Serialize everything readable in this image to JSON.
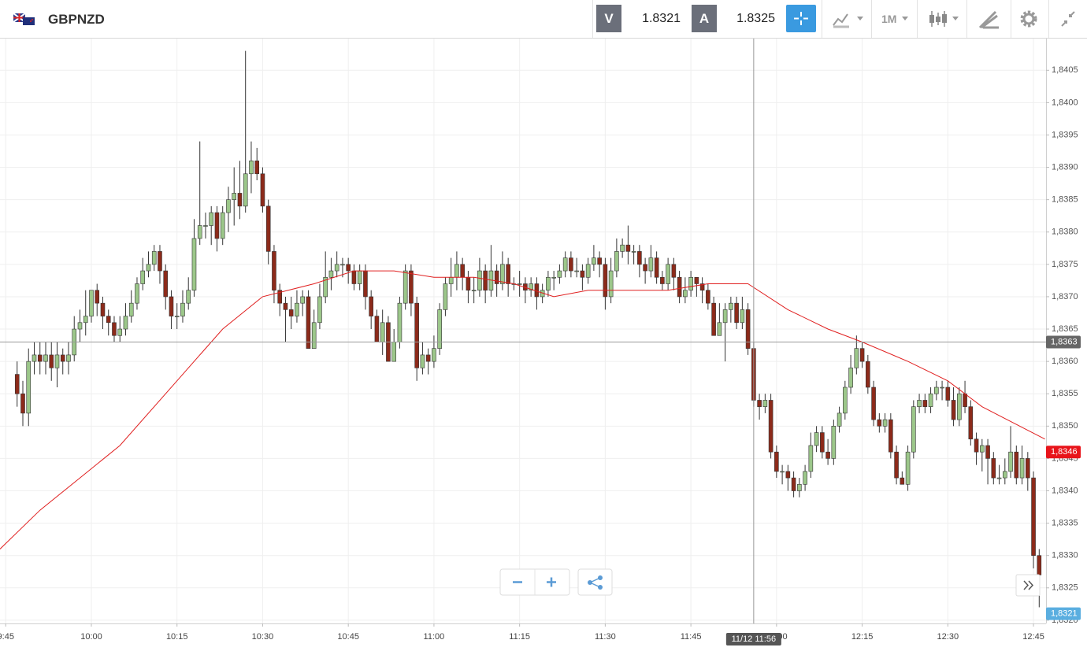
{
  "header": {
    "symbol": "GBPNZD",
    "bid_label": "V",
    "bid": "1.8321",
    "ask_label": "A",
    "ask": "1.8325",
    "timeframe": "1M"
  },
  "chart_data": {
    "type": "candlestick",
    "up_color": "#9cc78a",
    "down_color": "#8c2a1a",
    "edge_color": "#333333",
    "x": [
      587,
      588,
      589,
      590,
      591,
      592,
      593,
      594,
      595,
      596,
      597,
      598,
      599,
      600,
      601,
      602,
      603,
      604,
      605,
      606,
      607,
      608,
      609,
      610,
      611,
      612,
      613,
      614,
      615,
      616,
      617,
      618,
      619,
      620,
      621,
      622,
      623,
      624,
      625,
      626,
      627,
      628,
      629,
      630,
      631,
      632,
      633,
      634,
      635,
      636,
      637,
      638,
      639,
      640,
      641,
      642,
      643,
      644,
      645,
      646,
      647,
      648,
      649,
      650,
      651,
      652,
      653,
      654,
      655,
      656,
      657,
      658,
      659,
      660,
      661,
      662,
      663,
      664,
      665,
      666,
      667,
      668,
      669,
      670,
      671,
      672,
      673,
      674,
      675,
      676,
      677,
      678,
      679,
      680,
      681,
      682,
      683,
      684,
      685,
      686,
      687,
      688,
      689,
      690,
      691,
      692,
      693,
      694,
      695,
      696,
      697,
      698,
      699,
      700,
      701,
      702,
      703,
      704,
      705,
      706,
      707,
      708,
      709,
      710,
      711,
      712,
      713,
      714,
      715,
      716,
      717,
      718,
      719,
      720,
      721,
      722,
      723,
      724,
      725,
      726,
      727,
      728,
      729,
      730,
      731,
      732,
      733,
      734,
      735,
      736,
      737,
      738,
      739,
      740,
      741,
      742,
      743,
      744,
      745,
      746,
      747,
      748,
      749,
      750,
      751,
      752,
      753,
      754,
      755,
      756,
      757,
      758,
      759,
      760,
      761,
      762,
      763,
      764,
      765,
      766
    ],
    "open": [
      1.8358,
      1.8355,
      1.8352,
      1.836,
      1.8361,
      1.836,
      1.8361,
      1.8359,
      1.8361,
      1.836,
      1.8361,
      1.8365,
      1.8366,
      1.8367,
      1.8371,
      1.8369,
      1.8367,
      1.8366,
      1.8364,
      1.8365,
      1.8367,
      1.8369,
      1.8372,
      1.8374,
      1.8375,
      1.8377,
      1.8374,
      1.837,
      1.8367,
      1.8367,
      1.8369,
      1.8371,
      1.8379,
      1.8381,
      1.8381,
      1.8383,
      1.8379,
      1.8383,
      1.8385,
      1.8386,
      1.8384,
      1.8389,
      1.8391,
      1.8389,
      1.8384,
      1.8377,
      1.8371,
      1.8369,
      1.8368,
      1.8367,
      1.8369,
      1.837,
      1.8362,
      1.8366,
      1.837,
      1.8373,
      1.8374,
      1.8375,
      1.8375,
      1.8374,
      1.8372,
      1.8374,
      1.837,
      1.8367,
      1.8363,
      1.8366,
      1.836,
      1.8363,
      1.8369,
      1.8374,
      1.8369,
      1.8359,
      1.8361,
      1.836,
      1.8362,
      1.8368,
      1.8372,
      1.8373,
      1.8375,
      1.8373,
      1.8371,
      1.8371,
      1.8374,
      1.8371,
      1.8374,
      1.8372,
      1.8375,
      1.8372,
      1.8372,
      1.8372,
      1.8371,
      1.8372,
      1.837,
      1.8371,
      1.8373,
      1.8373,
      1.8374,
      1.8376,
      1.8374,
      1.8374,
      1.8373,
      1.8375,
      1.8376,
      1.8375,
      1.837,
      1.8374,
      1.8377,
      1.8378,
      1.8377,
      1.8377,
      1.8375,
      1.8374,
      1.8376,
      1.8373,
      1.8372,
      1.8375,
      1.8373,
      1.837,
      1.8371,
      1.8373,
      1.8372,
      1.8371,
      1.8369,
      1.8364,
      1.8366,
      1.8368,
      1.8369,
      1.8366,
      1.8368,
      1.8362,
      1.8354,
      1.8353,
      1.8354,
      1.8346,
      1.8343,
      1.8343,
      1.8342,
      1.834,
      1.8341,
      1.8343,
      1.8347,
      1.8349,
      1.8346,
      1.8345,
      1.835,
      1.8352,
      1.8356,
      1.8359,
      1.8362,
      1.836,
      1.8356,
      1.8351,
      1.835,
      1.8351,
      1.8346,
      1.8342,
      1.8341,
      1.8346,
      1.8353,
      1.8354,
      1.8353,
      1.8355,
      1.8356,
      1.8356,
      1.8354,
      1.8351,
      1.8355,
      1.8353,
      1.8348,
      1.8346,
      1.8347,
      1.8345,
      1.8342,
      1.8342,
      1.8343,
      1.8346,
      1.8342,
      1.8345,
      1.8342,
      1.833
    ],
    "high": [
      1.836,
      1.8357,
      1.8362,
      1.8363,
      1.8363,
      1.8363,
      1.8363,
      1.8363,
      1.8362,
      1.8363,
      1.8367,
      1.8368,
      1.8371,
      1.8371,
      1.8372,
      1.837,
      1.8368,
      1.8367,
      1.8367,
      1.8369,
      1.8371,
      1.8373,
      1.8376,
      1.8377,
      1.8378,
      1.8378,
      1.8375,
      1.8371,
      1.8369,
      1.8371,
      1.8373,
      1.8382,
      1.8394,
      1.8383,
      1.8384,
      1.8384,
      1.8384,
      1.8387,
      1.839,
      1.8391,
      1.8408,
      1.8394,
      1.8393,
      1.839,
      1.8385,
      1.8378,
      1.8372,
      1.837,
      1.837,
      1.8371,
      1.8371,
      1.8371,
      1.8368,
      1.8372,
      1.8377,
      1.8376,
      1.8377,
      1.8376,
      1.8376,
      1.8375,
      1.8375,
      1.8375,
      1.8371,
      1.8368,
      1.8368,
      1.8367,
      1.8365,
      1.837,
      1.8375,
      1.8375,
      1.837,
      1.8363,
      1.8362,
      1.8364,
      1.8369,
      1.8373,
      1.8376,
      1.8377,
      1.8376,
      1.8374,
      1.8373,
      1.8376,
      1.8375,
      1.8378,
      1.8375,
      1.8377,
      1.8376,
      1.8373,
      1.8374,
      1.8373,
      1.8373,
      1.8373,
      1.8372,
      1.8374,
      1.8374,
      1.8375,
      1.8377,
      1.8377,
      1.8376,
      1.8375,
      1.8376,
      1.8378,
      1.8377,
      1.8376,
      1.8376,
      1.8379,
      1.8379,
      1.8381,
      1.8378,
      1.8378,
      1.8376,
      1.8378,
      1.8377,
      1.8374,
      1.8376,
      1.8376,
      1.8374,
      1.8373,
      1.8374,
      1.8373,
      1.8373,
      1.8372,
      1.837,
      1.8369,
      1.8369,
      1.837,
      1.837,
      1.837,
      1.8369,
      1.8363,
      1.8355,
      1.8355,
      1.8355,
      1.8347,
      1.8344,
      1.8344,
      1.8343,
      1.8342,
      1.8344,
      1.8349,
      1.835,
      1.835,
      1.8348,
      1.8351,
      1.8353,
      1.8357,
      1.8361,
      1.8364,
      1.8363,
      1.8361,
      1.8357,
      1.8352,
      1.8352,
      1.8352,
      1.8347,
      1.8343,
      1.8347,
      1.8354,
      1.8355,
      1.8355,
      1.8356,
      1.8357,
      1.8357,
      1.8357,
      1.8356,
      1.8356,
      1.8357,
      1.8354,
      1.8349,
      1.8348,
      1.8348,
      1.8346,
      1.8344,
      1.8345,
      1.835,
      1.8347,
      1.8347,
      1.8346,
      1.8343,
      1.8331
    ],
    "low": [
      1.8353,
      1.835,
      1.835,
      1.8358,
      1.8358,
      1.8358,
      1.8357,
      1.8356,
      1.8358,
      1.8358,
      1.836,
      1.8363,
      1.8364,
      1.8366,
      1.8367,
      1.8365,
      1.8364,
      1.8363,
      1.8363,
      1.8364,
      1.8366,
      1.8368,
      1.8371,
      1.8373,
      1.8374,
      1.8372,
      1.8368,
      1.8365,
      1.8365,
      1.8366,
      1.8368,
      1.837,
      1.8378,
      1.8379,
      1.8378,
      1.8377,
      1.8378,
      1.838,
      1.8381,
      1.8382,
      1.8383,
      1.8386,
      1.8388,
      1.8383,
      1.8375,
      1.8369,
      1.8367,
      1.8363,
      1.8365,
      1.8366,
      1.8367,
      1.8362,
      1.8362,
      1.8365,
      1.8369,
      1.8371,
      1.8373,
      1.8373,
      1.8372,
      1.8371,
      1.8371,
      1.8368,
      1.8365,
      1.8363,
      1.8361,
      1.836,
      1.836,
      1.8362,
      1.8368,
      1.8367,
      1.8357,
      1.8358,
      1.8358,
      1.8359,
      1.8361,
      1.8367,
      1.837,
      1.8371,
      1.8371,
      1.8369,
      1.8369,
      1.837,
      1.8369,
      1.837,
      1.837,
      1.8371,
      1.837,
      1.8371,
      1.837,
      1.8369,
      1.837,
      1.8368,
      1.8369,
      1.837,
      1.8371,
      1.8372,
      1.8373,
      1.8373,
      1.8373,
      1.8371,
      1.8372,
      1.8374,
      1.8373,
      1.8368,
      1.8369,
      1.8373,
      1.8376,
      1.8375,
      1.8375,
      1.8373,
      1.8372,
      1.8373,
      1.8372,
      1.8371,
      1.8371,
      1.8371,
      1.8369,
      1.8369,
      1.837,
      1.837,
      1.8369,
      1.8368,
      1.8364,
      1.8364,
      1.836,
      1.8366,
      1.8365,
      1.8365,
      1.8361,
      1.8353,
      1.8351,
      1.8352,
      1.8345,
      1.8342,
      1.8341,
      1.834,
      1.8339,
      1.8339,
      1.834,
      1.8342,
      1.8346,
      1.8345,
      1.8344,
      1.8344,
      1.8349,
      1.8351,
      1.8355,
      1.8358,
      1.8359,
      1.8355,
      1.835,
      1.8349,
      1.8349,
      1.8345,
      1.8341,
      1.8341,
      1.834,
      1.8345,
      1.8352,
      1.8352,
      1.8352,
      1.8354,
      1.8354,
      1.8353,
      1.835,
      1.835,
      1.8352,
      1.8347,
      1.8344,
      1.8343,
      1.8341,
      1.8341,
      1.8341,
      1.8341,
      1.8342,
      1.8341,
      1.8341,
      1.834,
      1.8328,
      1.8322
    ],
    "close": [
      1.8355,
      1.8352,
      1.836,
      1.8361,
      1.836,
      1.8361,
      1.8359,
      1.8361,
      1.836,
      1.8361,
      1.8365,
      1.8366,
      1.8367,
      1.8371,
      1.8369,
      1.8367,
      1.8366,
      1.8364,
      1.8365,
      1.8367,
      1.8369,
      1.8372,
      1.8374,
      1.8375,
      1.8377,
      1.8374,
      1.837,
      1.8367,
      1.8367,
      1.8369,
      1.8371,
      1.8379,
      1.8381,
      1.8381,
      1.8383,
      1.8379,
      1.8383,
      1.8385,
      1.8386,
      1.8384,
      1.8389,
      1.8391,
      1.8389,
      1.8384,
      1.8377,
      1.8371,
      1.8369,
      1.8368,
      1.8367,
      1.8369,
      1.837,
      1.8362,
      1.8366,
      1.837,
      1.8373,
      1.8374,
      1.8375,
      1.8375,
      1.8374,
      1.8372,
      1.8374,
      1.837,
      1.8367,
      1.8363,
      1.8366,
      1.836,
      1.8363,
      1.8369,
      1.8374,
      1.8369,
      1.8359,
      1.8361,
      1.836,
      1.8362,
      1.8368,
      1.8372,
      1.8373,
      1.8375,
      1.8373,
      1.8371,
      1.8371,
      1.8374,
      1.8371,
      1.8374,
      1.8372,
      1.8375,
      1.8372,
      1.8372,
      1.8372,
      1.8371,
      1.8372,
      1.837,
      1.8371,
      1.8373,
      1.8373,
      1.8374,
      1.8376,
      1.8374,
      1.8374,
      1.8373,
      1.8375,
      1.8376,
      1.8375,
      1.837,
      1.8374,
      1.8377,
      1.8378,
      1.8377,
      1.8377,
      1.8375,
      1.8374,
      1.8376,
      1.8373,
      1.8372,
      1.8375,
      1.8373,
      1.837,
      1.8371,
      1.8373,
      1.8372,
      1.8371,
      1.8369,
      1.8364,
      1.8366,
      1.8368,
      1.8369,
      1.8366,
      1.8368,
      1.8362,
      1.8354,
      1.8353,
      1.8354,
      1.8346,
      1.8343,
      1.8343,
      1.8342,
      1.834,
      1.8341,
      1.8343,
      1.8347,
      1.8349,
      1.8346,
      1.8345,
      1.835,
      1.8352,
      1.8356,
      1.8359,
      1.8362,
      1.836,
      1.8356,
      1.8351,
      1.835,
      1.8351,
      1.8346,
      1.8342,
      1.8341,
      1.8346,
      1.8353,
      1.8354,
      1.8353,
      1.8355,
      1.8356,
      1.8356,
      1.8354,
      1.8351,
      1.8355,
      1.8353,
      1.8348,
      1.8346,
      1.8347,
      1.8345,
      1.8342,
      1.8342,
      1.8343,
      1.8346,
      1.8342,
      1.8345,
      1.8342,
      1.833,
      1.8327
    ],
    "overlay": {
      "color": "#e02020",
      "x": [
        584,
        591,
        598,
        605,
        615,
        623,
        630,
        639,
        646,
        653,
        660,
        667,
        674,
        681,
        687,
        694,
        701,
        708,
        715,
        722,
        729,
        735,
        743,
        750,
        756,
        767
      ],
      "values": [
        1.8331,
        1.8337,
        1.8342,
        1.8347,
        1.8357,
        1.8365,
        1.837,
        1.8372,
        1.8374,
        1.8374,
        1.8373,
        1.8373,
        1.8372,
        1.837,
        1.8371,
        1.8371,
        1.8371,
        1.8372,
        1.8372,
        1.8368,
        1.8365,
        1.8363,
        1.836,
        1.8357,
        1.8353,
        1.8348
      ]
    },
    "xlim": [
      584,
      767.2
    ],
    "xticks": [
      {
        "value": 585,
        "label": "9:45"
      },
      {
        "value": 600,
        "label": "10:00"
      },
      {
        "value": 615,
        "label": "10:15"
      },
      {
        "value": 630,
        "label": "10:30"
      },
      {
        "value": 645,
        "label": "10:45"
      },
      {
        "value": 660,
        "label": "11:00"
      },
      {
        "value": 675,
        "label": "11:15"
      },
      {
        "value": 690,
        "label": "11:30"
      },
      {
        "value": 705,
        "label": "11:45"
      },
      {
        "value": 720,
        "label": "12:00"
      },
      {
        "value": 735,
        "label": "12:15"
      },
      {
        "value": 750,
        "label": "12:30"
      },
      {
        "value": 765,
        "label": "12:45"
      }
    ],
    "ylim": [
      1.83195,
      1.84099
    ],
    "yticks": [
      {
        "value": 1.832,
        "label": "1,8320"
      },
      {
        "value": 1.8325,
        "label": "1,8325"
      },
      {
        "value": 1.833,
        "label": "1,8330"
      },
      {
        "value": 1.8335,
        "label": "1,8335"
      },
      {
        "value": 1.834,
        "label": "1,8340"
      },
      {
        "value": 1.8345,
        "label": "1,8345"
      },
      {
        "value": 1.835,
        "label": "1,8350"
      },
      {
        "value": 1.8355,
        "label": "1,8355"
      },
      {
        "value": 1.836,
        "label": "1,8360"
      },
      {
        "value": 1.8365,
        "label": "1,8365"
      },
      {
        "value": 1.837,
        "label": "1,8370"
      },
      {
        "value": 1.8375,
        "label": "1,8375"
      },
      {
        "value": 1.838,
        "label": "1,8380"
      },
      {
        "value": 1.8385,
        "label": "1,8385"
      },
      {
        "value": 1.839,
        "label": "1,8390"
      },
      {
        "value": 1.8395,
        "label": "1,8395"
      },
      {
        "value": 1.84,
        "label": "1,8400"
      },
      {
        "value": 1.8405,
        "label": "1,8405"
      }
    ],
    "grid": true,
    "price_labels": [
      {
        "value": 1.8346,
        "label": "1,8346",
        "color": "#e8141a"
      },
      {
        "value": 1.8321,
        "label": "1,8321",
        "color": "#5aaee0"
      }
    ],
    "crosshair": {
      "x": {
        "value": 716,
        "label": "11/12 11:56"
      },
      "y": {
        "value": 1.8363,
        "label": "1,8363"
      }
    }
  }
}
